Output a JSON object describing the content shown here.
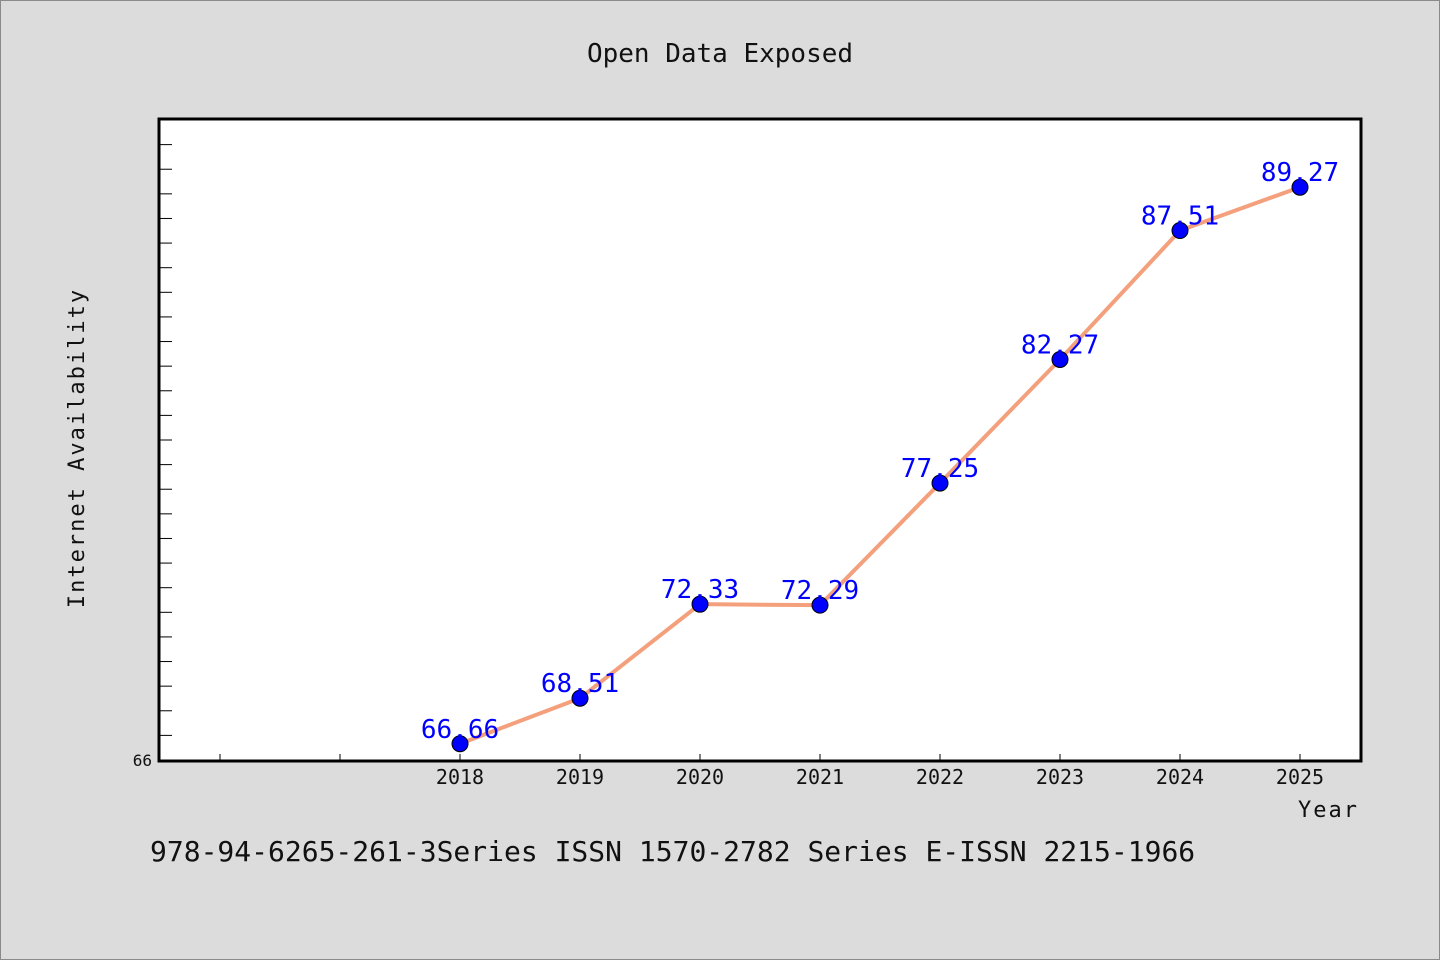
{
  "chart_data": {
    "type": "line",
    "title": "Open Data Exposed",
    "xlabel": "Year",
    "ylabel": "Internet Availability",
    "x": [
      2018,
      2019,
      2020,
      2021,
      2022,
      2023,
      2024,
      2025
    ],
    "series": [
      {
        "values": [
          66.66,
          68.51,
          72.33,
          72.29,
          77.25,
          82.27,
          87.51,
          89.27
        ]
      }
    ],
    "data_labels": [
      "66.66",
      "68.51",
      "72.33",
      "72.29",
      "77.25",
      "82.27",
      "87.51",
      "89.27"
    ],
    "ytick_labels": [
      "66"
    ],
    "xlim": [
      2015.5,
      2025.5
    ],
    "ylim": [
      66,
      92
    ],
    "y_minor_tick_step": 1,
    "grid": false,
    "line_color": "#f4a07c",
    "marker_color": "#0000ff",
    "label_color": "#0000ff"
  },
  "footer": {
    "text": "978-94-6265-261-3Series ISSN 1570-2782 Series E-ISSN 2215-1966"
  }
}
